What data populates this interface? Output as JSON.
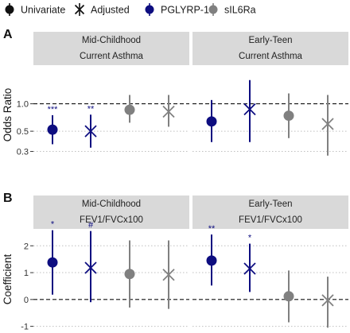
{
  "legend": {
    "items": [
      {
        "label": "Univariate",
        "symbol": "dot",
        "color": "#111111"
      },
      {
        "label": "Adjusted",
        "symbol": "cross",
        "color": "#111111"
      },
      {
        "label": "PGLYRP-1",
        "symbol": "dot",
        "color": "#0d0d80"
      },
      {
        "label": "sIL6Ra",
        "symbol": "dot",
        "color": "#808080"
      }
    ]
  },
  "colors": {
    "pglyrp1": "#0d0d80",
    "sil6ra": "#808080",
    "strip_bg": "#d9d9d9",
    "gridline": "#bfbfbf",
    "reference_line": "#111111"
  },
  "chart_data": [
    {
      "type": "forest",
      "panel_label": "A",
      "ylabel": "Odds Ratio",
      "y_scale": "log",
      "ylim": [
        0.22,
        2.6
      ],
      "yticks": [
        0.3,
        0.5,
        1.0
      ],
      "ytick_labels": [
        "0.3",
        "0.5",
        "1.0"
      ],
      "reference_value": 1.0,
      "reference_style": "dashed",
      "grid": "horizontal dotted",
      "facets": [
        {
          "strip": [
            "Mid-Childhood",
            "Current Asthma"
          ],
          "points": [
            {
              "biomarker": "PGLYRP-1",
              "model": "Univariate",
              "estimate": 0.52,
              "ci": [
                0.36,
                0.75
              ],
              "significance": "***"
            },
            {
              "biomarker": "PGLYRP-1",
              "model": "Adjusted",
              "estimate": 0.5,
              "ci": [
                0.33,
                0.76
              ],
              "significance": "**"
            },
            {
              "biomarker": "sIL6Ra",
              "model": "Univariate",
              "estimate": 0.86,
              "ci": [
                0.62,
                1.25
              ],
              "significance": ""
            },
            {
              "biomarker": "sIL6Ra",
              "model": "Adjusted",
              "estimate": 0.82,
              "ci": [
                0.56,
                1.25
              ],
              "significance": ""
            }
          ]
        },
        {
          "strip": [
            "Early-Teen",
            "Current Asthma"
          ],
          "points": [
            {
              "biomarker": "PGLYRP-1",
              "model": "Univariate",
              "estimate": 0.64,
              "ci": [
                0.38,
                1.1
              ],
              "significance": ""
            },
            {
              "biomarker": "PGLYRP-1",
              "model": "Adjusted",
              "estimate": 0.87,
              "ci": [
                0.38,
                1.82
              ],
              "significance": ""
            },
            {
              "biomarker": "sIL6Ra",
              "model": "Univariate",
              "estimate": 0.74,
              "ci": [
                0.42,
                1.3
              ],
              "significance": ""
            },
            {
              "biomarker": "sIL6Ra",
              "model": "Adjusted",
              "estimate": 0.6,
              "ci": [
                0.27,
                1.25
              ],
              "significance": ""
            }
          ]
        }
      ]
    },
    {
      "type": "forest",
      "panel_label": "B",
      "ylabel": "Coefficient",
      "y_scale": "linear",
      "ylim": [
        -1.1,
        2.6
      ],
      "yticks": [
        -1,
        0,
        1,
        2
      ],
      "ytick_labels": [
        "-1",
        "0",
        "1",
        "2"
      ],
      "reference_value": 0,
      "reference_style": "dashed",
      "grid": "horizontal dotted",
      "facets": [
        {
          "strip": [
            "Mid-Childhood",
            "FEV1/FVCx100"
          ],
          "points": [
            {
              "biomarker": "PGLYRP-1",
              "model": "Univariate",
              "estimate": 1.38,
              "ci": [
                0.18,
                2.58
              ],
              "significance": "*"
            },
            {
              "biomarker": "PGLYRP-1",
              "model": "Adjusted",
              "estimate": 1.18,
              "ci": [
                -0.1,
                2.55
              ],
              "significance": "#"
            },
            {
              "biomarker": "sIL6Ra",
              "model": "Univariate",
              "estimate": 0.95,
              "ci": [
                -0.3,
                2.2
              ],
              "significance": ""
            },
            {
              "biomarker": "sIL6Ra",
              "model": "Adjusted",
              "estimate": 0.92,
              "ci": [
                -0.35,
                2.2
              ],
              "significance": ""
            }
          ]
        },
        {
          "strip": [
            "Early-Teen",
            "FEV1/FVCx100"
          ],
          "points": [
            {
              "biomarker": "PGLYRP-1",
              "model": "Univariate",
              "estimate": 1.45,
              "ci": [
                0.52,
                2.42
              ],
              "significance": "**"
            },
            {
              "biomarker": "PGLYRP-1",
              "model": "Adjusted",
              "estimate": 1.15,
              "ci": [
                0.28,
                2.08
              ],
              "significance": "*"
            },
            {
              "biomarker": "sIL6Ra",
              "model": "Univariate",
              "estimate": 0.12,
              "ci": [
                -0.85,
                1.08
              ],
              "significance": ""
            },
            {
              "biomarker": "sIL6Ra",
              "model": "Adjusted",
              "estimate": -0.03,
              "ci": [
                -1.05,
                0.85
              ],
              "significance": ""
            }
          ]
        }
      ]
    }
  ]
}
